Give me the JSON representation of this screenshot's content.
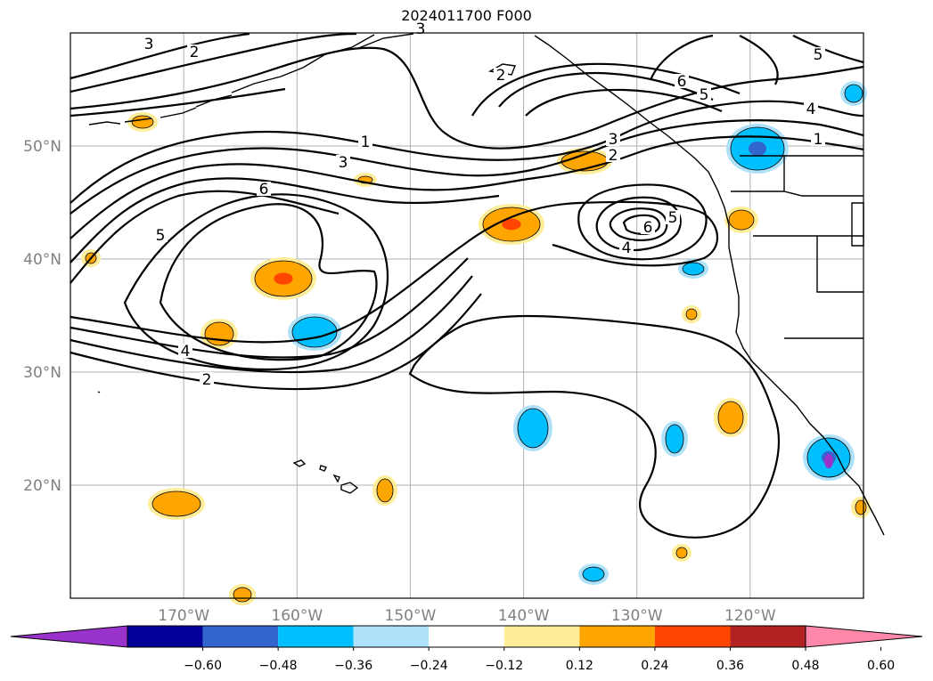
{
  "figure": {
    "title": "2024011700 F000"
  },
  "map": {
    "lat_range": [
      10,
      60
    ],
    "lon_range": [
      -180,
      -110
    ],
    "lat_ticks": [
      {
        "value": 50,
        "label": "50°N"
      },
      {
        "value": 40,
        "label": "40°N"
      },
      {
        "value": 30,
        "label": "30°N"
      },
      {
        "value": 20,
        "label": "20°N"
      }
    ],
    "lon_ticks": [
      {
        "value": -170,
        "label": "170°W"
      },
      {
        "value": -160,
        "label": "160°W"
      },
      {
        "value": -150,
        "label": "150°W"
      },
      {
        "value": -140,
        "label": "140°W"
      },
      {
        "value": -130,
        "label": "130°W"
      },
      {
        "value": -120,
        "label": "120°W"
      }
    ],
    "grid": true,
    "contour_labels": [
      "1",
      "2",
      "3",
      "4",
      "5",
      "6"
    ],
    "colors": {
      "grid": "#b0b0b0",
      "tick_label": "#808080",
      "contour": "#000000"
    }
  },
  "colorbar": {
    "bins": [
      {
        "color": "#9933cc"
      },
      {
        "color": "#000099"
      },
      {
        "color": "#3366cc"
      },
      {
        "color": "#00bfff"
      },
      {
        "color": "#aee2fa"
      },
      {
        "color": "#ffffff"
      },
      {
        "color": "#ffee99"
      },
      {
        "color": "#ffa500"
      },
      {
        "color": "#ff4500"
      },
      {
        "color": "#b22222"
      },
      {
        "color": "#ff88aa"
      }
    ],
    "tick_labels": [
      "−0.60",
      "−0.48",
      "−0.36",
      "−0.24",
      "−0.12",
      "0.12",
      "0.24",
      "0.36",
      "0.48",
      "0.60"
    ]
  },
  "shading_colors": {
    "orange": "#ffa500",
    "yellow": "#ffee99",
    "red": "#ff4500",
    "lightblue": "#aee2fa",
    "blue": "#00bfff",
    "mid": "#3366cc",
    "purple": "#9933cc"
  }
}
